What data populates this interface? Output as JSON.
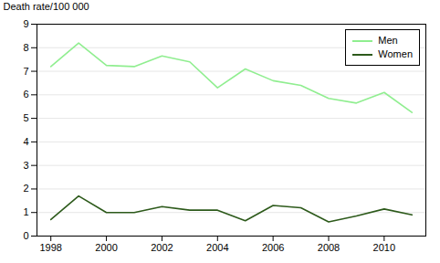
{
  "chart_data": {
    "type": "line",
    "ylabel": "Death rate/100 000",
    "x": [
      1998,
      1999,
      2000,
      2001,
      2002,
      2003,
      2004,
      2005,
      2006,
      2007,
      2008,
      2009,
      2010,
      2011
    ],
    "series": [
      {
        "name": "Men",
        "color": "#90EE90",
        "values": [
          7.2,
          8.2,
          7.25,
          7.2,
          7.65,
          7.4,
          6.3,
          7.1,
          6.6,
          6.4,
          5.85,
          5.65,
          6.1,
          5.25
        ]
      },
      {
        "name": "Women",
        "color": "#2d5a1b",
        "values": [
          0.7,
          1.7,
          1.0,
          1.0,
          1.25,
          1.1,
          1.1,
          0.65,
          1.3,
          1.2,
          0.6,
          0.85,
          1.15,
          0.9
        ]
      }
    ],
    "xlim": [
      1997.5,
      2011.5
    ],
    "xticks": [
      1998,
      2000,
      2002,
      2004,
      2006,
      2008,
      2010
    ],
    "ylim": [
      0,
      9
    ],
    "yticks": [
      0,
      1,
      2,
      3,
      4,
      5,
      6,
      7,
      8,
      9
    ],
    "grid": true,
    "legend": "upper right"
  }
}
